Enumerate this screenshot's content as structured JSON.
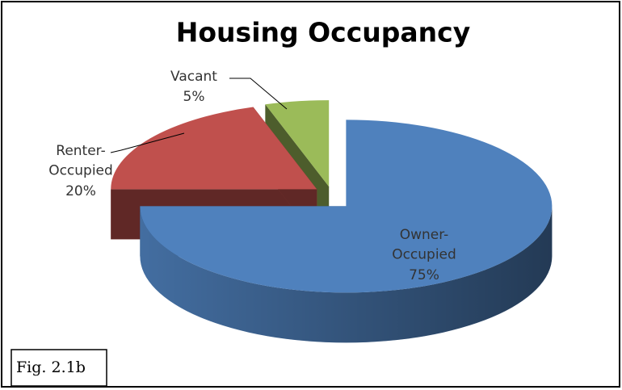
{
  "chart_data": {
    "type": "pie",
    "title": "Housing Occupancy",
    "categories": [
      "Owner-Occupied",
      "Renter-Occupied",
      "Vacant"
    ],
    "values": [
      75,
      20,
      5
    ],
    "value_labels": [
      "75%",
      "20%",
      "5%"
    ],
    "colors": [
      "#4f81bd",
      "#c0504d",
      "#9bbb59"
    ],
    "annotation": "Fig. 2.1b"
  }
}
